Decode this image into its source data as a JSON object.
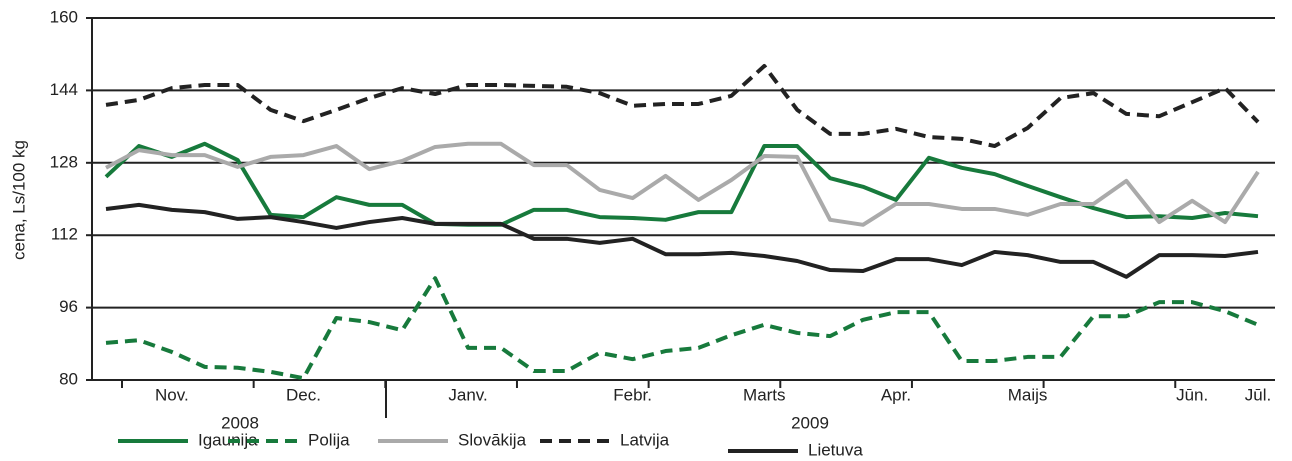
{
  "chart_data": {
    "type": "line",
    "y_label": "cena, Ls/100 kg",
    "categories": [
      null,
      null,
      "Nov.",
      null,
      null,
      null,
      "Dec.",
      null,
      null,
      null,
      null,
      "Janv.",
      null,
      null,
      null,
      null,
      "Febr.",
      null,
      null,
      null,
      "Marts",
      null,
      null,
      null,
      "Apr.",
      null,
      null,
      null,
      "Maijs",
      null,
      null,
      null,
      null,
      "Jūn.",
      null,
      "Jūl."
    ],
    "year_labels": [
      "2008",
      "2009"
    ],
    "ylim": [
      80,
      160
    ],
    "yticks": [
      80,
      96,
      112,
      128,
      144,
      160
    ],
    "grid": true,
    "legend": "bottom",
    "series": [
      {
        "name": "Igaunija",
        "color": "#177a3c",
        "dashed": false,
        "values": [
          124.9,
          131.7,
          129.3,
          132.2,
          128.6,
          116.5,
          116.0,
          120.4,
          118.7,
          118.7,
          114.5,
          114.3,
          114.3,
          117.6,
          117.6,
          116.0,
          115.8,
          115.4,
          117.1,
          117.1,
          131.7,
          131.7,
          124.6,
          122.7,
          119.8,
          129.1,
          126.9,
          125.5,
          122.9,
          120.4,
          118.0,
          116.0,
          116.2,
          115.8,
          116.9,
          116.2
        ]
      },
      {
        "name": "Polija",
        "color": "#177a3c",
        "dashed": true,
        "values": [
          88.2,
          88.8,
          86.2,
          82.9,
          82.7,
          81.8,
          80.4,
          93.7,
          92.8,
          91.0,
          102.5,
          87.1,
          87.1,
          82.0,
          82.0,
          86.0,
          84.6,
          86.4,
          87.1,
          89.9,
          92.2,
          90.4,
          89.7,
          93.3,
          95.0,
          95.0,
          84.2,
          84.2,
          85.1,
          85.1,
          94.1,
          94.1,
          97.2,
          97.2,
          95.2,
          92.2
        ]
      },
      {
        "name": "Slovākija",
        "color": "#aaaaaa",
        "dashed": false,
        "values": [
          126.9,
          130.8,
          129.7,
          129.7,
          127.1,
          129.3,
          129.7,
          131.7,
          126.6,
          128.4,
          131.5,
          132.2,
          132.2,
          127.5,
          127.5,
          122.0,
          120.2,
          125.1,
          119.8,
          124.2,
          129.5,
          129.3,
          115.4,
          114.3,
          118.9,
          118.9,
          117.8,
          117.8,
          116.5,
          118.9,
          118.9,
          124.0,
          114.9,
          119.6,
          114.9,
          126.0
        ]
      },
      {
        "name": "Latvija",
        "color": "#222222",
        "dashed": true,
        "values": [
          140.8,
          141.9,
          144.5,
          145.2,
          145.2,
          139.7,
          137.2,
          139.7,
          142.3,
          144.5,
          143.2,
          145.2,
          145.2,
          145.0,
          144.8,
          143.4,
          140.6,
          141.0,
          141.0,
          142.8,
          149.4,
          139.7,
          134.4,
          134.4,
          135.5,
          133.7,
          133.3,
          131.7,
          135.7,
          142.3,
          143.4,
          138.8,
          138.3,
          141.4,
          144.5,
          137.0
        ]
      },
      {
        "name": "Lietuva",
        "color": "#222222",
        "dashed": false,
        "values": [
          117.8,
          118.7,
          117.6,
          117.1,
          115.6,
          116.0,
          114.9,
          113.6,
          114.9,
          115.8,
          114.5,
          114.5,
          114.5,
          111.2,
          111.2,
          110.3,
          111.2,
          107.8,
          107.8,
          108.1,
          107.4,
          106.3,
          104.3,
          104.1,
          106.7,
          106.7,
          105.4,
          108.3,
          107.6,
          106.1,
          106.1,
          102.8,
          107.6,
          107.6,
          107.4,
          108.3
        ]
      }
    ]
  }
}
